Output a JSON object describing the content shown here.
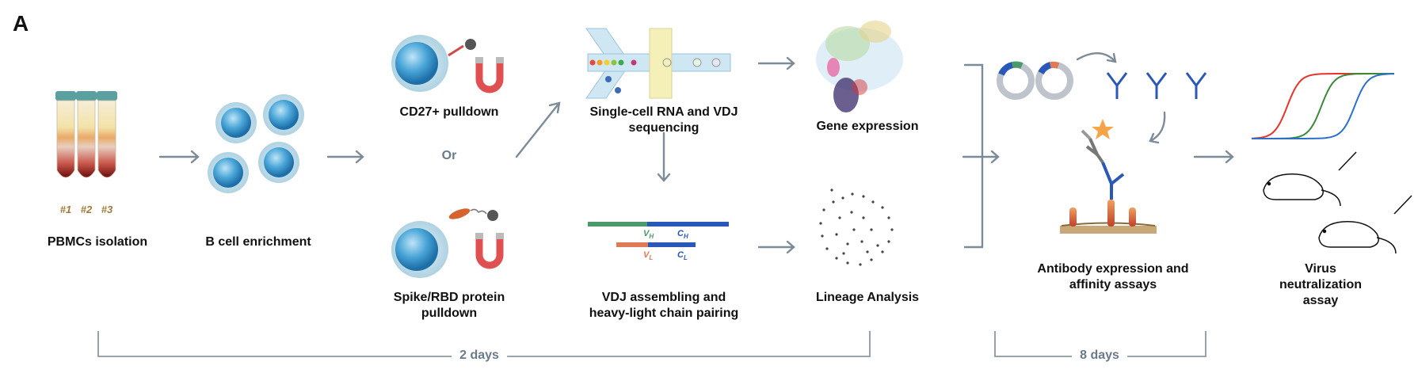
{
  "panel_label": "A",
  "steps": {
    "pbmc": "PBMCs isolation",
    "enrichment": "B cell enrichment",
    "cd27": "CD27+ pulldown",
    "or": "Or",
    "spike": "Spike/RBD protein\npulldown",
    "scseq": "Single-cell RNA and VDJ\nsequencing",
    "vdj": "VDJ assembling and\nheavy-light chain pairing",
    "gene": "Gene expression",
    "lineage": "Lineage Analysis",
    "antibody": "Antibody expression and\naffinity assays",
    "virus": "Virus neutralization\nassay"
  },
  "tubes": [
    "#1",
    "#2",
    "#3"
  ],
  "segments": {
    "vh": "V",
    "vh_sub": "H",
    "ch": "C",
    "ch_sub": "H",
    "vl": "V",
    "vl_sub": "L",
    "cl": "C",
    "cl_sub": "L"
  },
  "durations": {
    "first": "2 days",
    "second": "8 days"
  },
  "colors": {
    "arrow": "#7d8a98",
    "heavy_v": "#4a9a6a",
    "heavy_c": "#2a58b8",
    "light_v": "#e07a55",
    "light_c": "#2a58b8",
    "curve_red": "#e8332a",
    "curve_green": "#3a8a3a",
    "curve_blue": "#2a70c8"
  }
}
